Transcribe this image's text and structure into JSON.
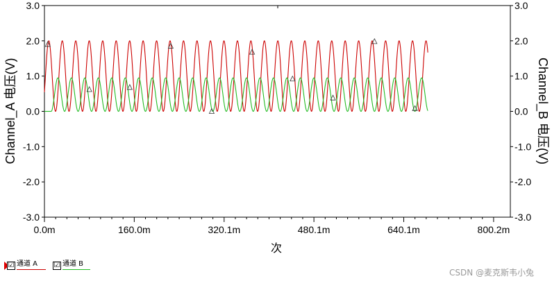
{
  "chart_data": {
    "type": "line",
    "title": "",
    "ylabel_left": "Channel_A 电压(V)",
    "ylabel_right": "Channel_B 电压(V)",
    "xlabel": "次",
    "xlim": [
      0,
      830
    ],
    "ylim": [
      -3.0,
      3.0
    ],
    "y_ticks": [
      "3.0",
      "2.0",
      "1.0",
      "0.0",
      "-1.0",
      "-2.0",
      "-3.0"
    ],
    "x_ticks": [
      {
        "value": 0.0,
        "label": "0.0m"
      },
      {
        "value": 160.0,
        "label": "160.0m"
      },
      {
        "value": 320.1,
        "label": "320.1m"
      },
      {
        "value": 480.1,
        "label": "480.1m"
      },
      {
        "value": 640.1,
        "label": "640.1m"
      },
      {
        "value": 800.2,
        "label": "800.2m"
      }
    ],
    "grid": false,
    "series": [
      {
        "name": "通道 A",
        "color": "#cc0000",
        "waveform": "sine",
        "period": 24.0,
        "min": 0.0,
        "max": 2.0,
        "x_start": 0.0,
        "x_end": 683.0
      },
      {
        "name": "通道 B",
        "color": "#22bb22",
        "waveform": "sine",
        "period": 24.0,
        "min": 0.0,
        "max": 0.95,
        "x_start": 12.0,
        "x_end": 683.0
      }
    ],
    "markers": [
      {
        "x": 6,
        "y": 1.9
      },
      {
        "x": 80,
        "y": 0.62
      },
      {
        "x": 152,
        "y": 0.68
      },
      {
        "x": 225,
        "y": 1.85
      },
      {
        "x": 298,
        "y": 0.0
      },
      {
        "x": 370,
        "y": 1.68
      },
      {
        "x": 442,
        "y": 0.92
      },
      {
        "x": 514,
        "y": 0.38
      },
      {
        "x": 588,
        "y": 1.98
      },
      {
        "x": 660,
        "y": 0.08
      }
    ]
  },
  "legend": {
    "items": [
      {
        "label": "通道 A",
        "color": "#cc0000",
        "checked": "☑"
      },
      {
        "label": "通道 B",
        "color": "#22bb22",
        "checked": "☑"
      }
    ]
  },
  "watermark": "CSDN @麦克斯韦小兔"
}
